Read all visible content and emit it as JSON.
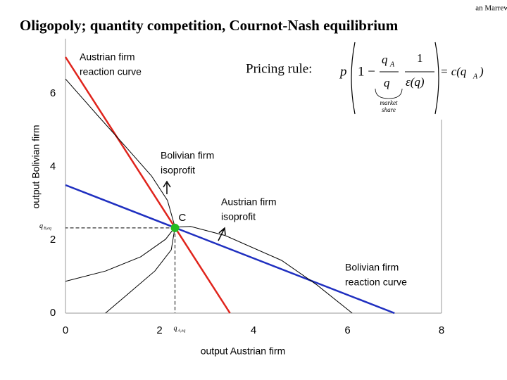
{
  "header": {
    "title": "Oligopoly; quantity competition, Cournot-Nash equilibrium",
    "author_fragment": "an Marrewijk"
  },
  "pricing_rule": {
    "label": "Pricing rule:",
    "p": "p",
    "one_minus": "1 −",
    "qA": "q",
    "qA_sub": "A",
    "q": "q",
    "one": "1",
    "eps": "ε(q)",
    "rhs": "= c(q",
    "rhs_sub": "A",
    "rhs_close": ")",
    "note": [
      "market",
      "share"
    ]
  },
  "chart_data": {
    "type": "line",
    "xlabel": "output Austrian firm",
    "ylabel": "output Bolivian firm",
    "xlim": [
      0,
      8
    ],
    "ylim": [
      0,
      7.5
    ],
    "xticks": [
      0,
      2,
      4,
      6,
      8
    ],
    "yticks": [
      0,
      2,
      4,
      6
    ],
    "series": [
      {
        "color": "#e0241c",
        "x": [
          0,
          3.5
        ],
        "values": [
          7,
          0
        ]
      },
      {
        "color": "#1f2fc0",
        "x": [
          0,
          7
        ],
        "values": [
          3.5,
          0
        ]
      },
      {
        "color": "#000000",
        "x": [
          0,
          0.7,
          1.3,
          1.83,
          2.17,
          2.33,
          2.25,
          1.9,
          1.38,
          0.85
        ],
        "values": [
          6.4,
          5.38,
          4.52,
          3.75,
          3.08,
          2.35,
          1.73,
          1.15,
          0.58,
          0
        ]
      },
      {
        "color": "#000000",
        "x": [
          0,
          0.85,
          1.6,
          2.13,
          2.33,
          2.66,
          3.4,
          4.6,
          5.35,
          6.1
        ],
        "values": [
          0.87,
          1.15,
          1.54,
          2.02,
          2.35,
          2.37,
          2.12,
          1.44,
          0.77,
          0
        ]
      }
    ],
    "point": {
      "label": "C",
      "x": 2.33,
      "y": 2.33,
      "color": "#22bb22"
    },
    "eq_labels": {
      "x": {
        "main": "q",
        "sub": "A,eq"
      },
      "y": {
        "main": "q",
        "sub": "B,eq"
      }
    },
    "annotations": [
      [
        "Austrian firm",
        "reaction curve"
      ],
      [
        "Bolivian firm",
        "isoprofit"
      ],
      [
        "Austrian firm",
        "isoprofit"
      ],
      [
        "Bolivian firm",
        "reaction curve"
      ]
    ]
  }
}
